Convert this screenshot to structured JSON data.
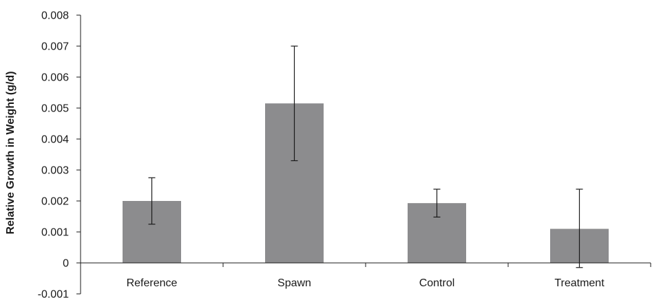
{
  "chart_data": {
    "type": "bar",
    "title": "",
    "xlabel": "",
    "ylabel": "Relative Growth in Weight (g/d)",
    "categories": [
      "Reference",
      "Spawn",
      "Control",
      "Treatment"
    ],
    "values": [
      0.002,
      0.00515,
      0.00193,
      0.0011
    ],
    "error_low": [
      0.00125,
      0.0033,
      0.00148,
      -0.00015
    ],
    "error_high": [
      0.00275,
      0.007,
      0.00238,
      0.00238
    ],
    "ylim": [
      -0.001,
      0.008
    ],
    "yticks": [
      -0.001,
      0,
      0.001,
      0.002,
      0.003,
      0.004,
      0.005,
      0.006,
      0.007,
      0.008
    ],
    "ytick_labels": [
      "-0.001",
      "0",
      "0.001",
      "0.002",
      "0.003",
      "0.004",
      "0.005",
      "0.006",
      "0.007",
      "0.008"
    ],
    "grid": false,
    "legend": "none",
    "bar_color": "#8c8c8e",
    "axis_color": "#1a1a1a"
  }
}
